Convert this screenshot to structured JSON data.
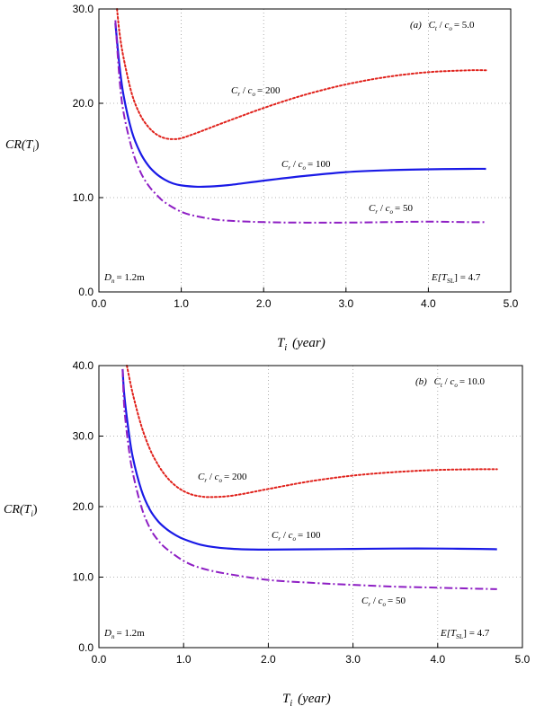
{
  "chart_data": [
    {
      "type": "line",
      "panel_label": "(a)",
      "ratio_label": {
        "left": "C",
        "left_sub": "t",
        "right": "c",
        "right_sub": "o",
        "value": "= 5.0"
      },
      "ylabel": {
        "text": "CR(T",
        "sub": "i",
        "close": ")"
      },
      "xlabel": {
        "text": "T",
        "sub": "i",
        "unit": "(year)"
      },
      "xlim": [
        0,
        5
      ],
      "ylim": [
        0,
        30
      ],
      "xticks": [
        "0.0",
        "1.0",
        "2.0",
        "3.0",
        "4.0",
        "5.0"
      ],
      "yticks": [
        "0.0",
        "10.0",
        "20.0",
        "30.0"
      ],
      "grid": true,
      "dn_note": {
        "text": "D",
        "sub": "n",
        "rest": "= 1.2m"
      },
      "et_note": {
        "text": "E[T",
        "sub": "SL",
        "rest": "] = 4.7"
      },
      "series": [
        {
          "ratio": "200",
          "label_value": "= 200",
          "color": "#e0221c",
          "dash": "2 2.5",
          "x": [
            0.22,
            0.25,
            0.3,
            0.4,
            0.5,
            0.6,
            0.7,
            0.8,
            0.9,
            1.0,
            1.2,
            1.5,
            2.0,
            2.5,
            3.0,
            3.5,
            4.0,
            4.5,
            4.7
          ],
          "y": [
            30.0,
            27.5,
            24.8,
            21.0,
            18.8,
            17.5,
            16.7,
            16.3,
            16.2,
            16.3,
            16.9,
            17.9,
            19.5,
            20.9,
            22.0,
            22.8,
            23.3,
            23.5,
            23.5
          ]
        },
        {
          "ratio": "100",
          "label_value": "= 100",
          "color": "#1a1ae6",
          "dash": "",
          "x": [
            0.2,
            0.25,
            0.3,
            0.4,
            0.5,
            0.6,
            0.7,
            0.8,
            0.9,
            1.0,
            1.2,
            1.4,
            1.6,
            2.0,
            2.5,
            3.0,
            3.5,
            4.0,
            4.5,
            4.7
          ],
          "y": [
            28.5,
            24.0,
            20.8,
            17.0,
            14.8,
            13.4,
            12.5,
            11.9,
            11.5,
            11.3,
            11.15,
            11.2,
            11.35,
            11.8,
            12.3,
            12.7,
            12.9,
            13.0,
            13.05,
            13.05
          ]
        },
        {
          "ratio": "50",
          "label_value": "= 50",
          "color": "#8e1fc4",
          "dash": "9 3 2 3",
          "x": [
            0.2,
            0.25,
            0.3,
            0.4,
            0.5,
            0.6,
            0.7,
            0.8,
            1.0,
            1.2,
            1.5,
            2.0,
            2.5,
            3.0,
            3.5,
            4.0,
            4.5,
            4.7
          ],
          "y": [
            28.8,
            22.6,
            19.0,
            15.2,
            12.8,
            11.3,
            10.3,
            9.5,
            8.5,
            8.0,
            7.6,
            7.4,
            7.35,
            7.35,
            7.4,
            7.45,
            7.4,
            7.4
          ]
        }
      ]
    },
    {
      "type": "line",
      "panel_label": "(b)",
      "ratio_label": {
        "left": "C",
        "left_sub": "t",
        "right": "c",
        "right_sub": "o",
        "value": "= 10.0"
      },
      "ylabel": {
        "text": "CR(T",
        "sub": "i",
        "close": ")"
      },
      "xlabel": {
        "text": "T",
        "sub": "i",
        "unit": "(year)"
      },
      "xlim": [
        0,
        5
      ],
      "ylim": [
        0,
        40
      ],
      "xticks": [
        "0.0",
        "1.0",
        "2.0",
        "3.0",
        "4.0",
        "5.0"
      ],
      "yticks": [
        "0.0",
        "10.0",
        "20.0",
        "30.0",
        "40.0"
      ],
      "grid": true,
      "dn_note": {
        "text": "D",
        "sub": "n",
        "rest": "= 1.2m"
      },
      "et_note": {
        "text": "E[T",
        "sub": "SL",
        "rest": "] = 4.7"
      },
      "series": [
        {
          "ratio": "200",
          "label_value": "= 200",
          "color": "#e0221c",
          "dash": "2 2.5",
          "x": [
            0.33,
            0.4,
            0.5,
            0.6,
            0.7,
            0.8,
            0.9,
            1.0,
            1.1,
            1.2,
            1.3,
            1.5,
            1.7,
            2.0,
            2.5,
            3.0,
            3.5,
            4.0,
            4.5,
            4.7
          ],
          "y": [
            40.0,
            36.0,
            31.5,
            28.2,
            25.9,
            24.2,
            23.0,
            22.2,
            21.7,
            21.45,
            21.35,
            21.45,
            21.8,
            22.5,
            23.6,
            24.4,
            24.9,
            25.2,
            25.3,
            25.3
          ]
        },
        {
          "ratio": "100",
          "label_value": "= 100",
          "color": "#1a1ae6",
          "dash": "",
          "x": [
            0.28,
            0.3,
            0.35,
            0.4,
            0.5,
            0.6,
            0.7,
            0.8,
            0.9,
            1.0,
            1.2,
            1.4,
            1.6,
            1.8,
            2.0,
            2.5,
            3.0,
            3.5,
            4.0,
            4.5,
            4.7
          ],
          "y": [
            39.5,
            35.8,
            30.8,
            27.0,
            22.4,
            19.6,
            17.9,
            16.8,
            16.0,
            15.4,
            14.6,
            14.2,
            14.0,
            13.92,
            13.9,
            13.95,
            14.0,
            14.05,
            14.05,
            14.0,
            13.95
          ]
        },
        {
          "ratio": "50",
          "label_value": "= 50",
          "color": "#8e1fc4",
          "dash": "9 3 2 3",
          "x": [
            0.28,
            0.3,
            0.35,
            0.4,
            0.5,
            0.6,
            0.7,
            0.8,
            1.0,
            1.2,
            1.5,
            2.0,
            2.5,
            3.0,
            3.5,
            4.0,
            4.5,
            4.7
          ],
          "y": [
            39.5,
            34.0,
            28.5,
            24.8,
            20.0,
            17.0,
            15.2,
            14.0,
            12.3,
            11.3,
            10.5,
            9.6,
            9.2,
            8.9,
            8.65,
            8.5,
            8.35,
            8.3
          ]
        }
      ]
    }
  ]
}
